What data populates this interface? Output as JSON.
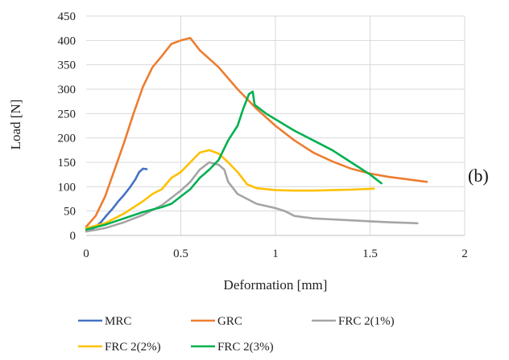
{
  "chart_data": {
    "type": "line",
    "panel_label": "(b)",
    "xlabel": "Deformation [mm]",
    "ylabel": "Load [N]",
    "xlim": [
      0,
      2
    ],
    "ylim": [
      0,
      450
    ],
    "xticks": [
      0,
      0.5,
      1,
      1.5,
      2
    ],
    "xtick_labels": [
      "0",
      "0.5",
      "1",
      "1.5",
      "2"
    ],
    "yticks": [
      0,
      50,
      100,
      150,
      200,
      250,
      300,
      350,
      400,
      450
    ],
    "ytick_labels": [
      "0",
      "50",
      "100",
      "150",
      "200",
      "250",
      "300",
      "350",
      "400",
      "450"
    ],
    "grid": true,
    "legend_position": "bottom",
    "series": [
      {
        "name": "MRC",
        "color": "#4472c4",
        "points": [
          [
            0.02,
            10
          ],
          [
            0.05,
            18
          ],
          [
            0.08,
            28
          ],
          [
            0.11,
            42
          ],
          [
            0.14,
            55
          ],
          [
            0.17,
            70
          ],
          [
            0.2,
            83
          ],
          [
            0.23,
            98
          ],
          [
            0.26,
            115
          ],
          [
            0.28,
            130
          ],
          [
            0.3,
            137
          ],
          [
            0.32,
            136
          ]
        ]
      },
      {
        "name": "GRC",
        "color": "#ed7d31",
        "points": [
          [
            0,
            18
          ],
          [
            0.05,
            40
          ],
          [
            0.1,
            80
          ],
          [
            0.15,
            135
          ],
          [
            0.2,
            190
          ],
          [
            0.25,
            250
          ],
          [
            0.3,
            305
          ],
          [
            0.35,
            345
          ],
          [
            0.4,
            368
          ],
          [
            0.45,
            393
          ],
          [
            0.5,
            400
          ],
          [
            0.55,
            405
          ],
          [
            0.6,
            380
          ],
          [
            0.7,
            345
          ],
          [
            0.8,
            300
          ],
          [
            0.9,
            260
          ],
          [
            1.0,
            225
          ],
          [
            1.1,
            195
          ],
          [
            1.2,
            170
          ],
          [
            1.3,
            152
          ],
          [
            1.4,
            137
          ],
          [
            1.5,
            127
          ],
          [
            1.6,
            120
          ],
          [
            1.7,
            115
          ],
          [
            1.8,
            110
          ]
        ]
      },
      {
        "name": "FRC 2(1%)",
        "color": "#a5a5a5",
        "points": [
          [
            0,
            8
          ],
          [
            0.1,
            15
          ],
          [
            0.2,
            27
          ],
          [
            0.3,
            42
          ],
          [
            0.4,
            62
          ],
          [
            0.5,
            92
          ],
          [
            0.55,
            110
          ],
          [
            0.6,
            135
          ],
          [
            0.65,
            150
          ],
          [
            0.7,
            145
          ],
          [
            0.73,
            135
          ],
          [
            0.75,
            110
          ],
          [
            0.8,
            85
          ],
          [
            0.9,
            65
          ],
          [
            1.0,
            56
          ],
          [
            1.05,
            50
          ],
          [
            1.1,
            40
          ],
          [
            1.2,
            35
          ],
          [
            1.3,
            33
          ],
          [
            1.4,
            31
          ],
          [
            1.5,
            29
          ],
          [
            1.6,
            27
          ],
          [
            1.75,
            25
          ]
        ]
      },
      {
        "name": "FRC 2(2%)",
        "color": "#ffc000",
        "points": [
          [
            0,
            15
          ],
          [
            0.1,
            25
          ],
          [
            0.2,
            45
          ],
          [
            0.3,
            70
          ],
          [
            0.35,
            85
          ],
          [
            0.4,
            95
          ],
          [
            0.45,
            118
          ],
          [
            0.5,
            130
          ],
          [
            0.55,
            150
          ],
          [
            0.6,
            170
          ],
          [
            0.65,
            175
          ],
          [
            0.7,
            168
          ],
          [
            0.75,
            150
          ],
          [
            0.8,
            130
          ],
          [
            0.85,
            105
          ],
          [
            0.9,
            97
          ],
          [
            1.0,
            93
          ],
          [
            1.1,
            92
          ],
          [
            1.2,
            92
          ],
          [
            1.3,
            93
          ],
          [
            1.4,
            94
          ],
          [
            1.52,
            96
          ]
        ]
      },
      {
        "name": "FRC 2(3%)",
        "color": "#00b050",
        "points": [
          [
            0,
            12
          ],
          [
            0.1,
            22
          ],
          [
            0.2,
            35
          ],
          [
            0.3,
            48
          ],
          [
            0.4,
            58
          ],
          [
            0.45,
            65
          ],
          [
            0.5,
            80
          ],
          [
            0.55,
            95
          ],
          [
            0.6,
            118
          ],
          [
            0.65,
            135
          ],
          [
            0.7,
            155
          ],
          [
            0.75,
            195
          ],
          [
            0.8,
            225
          ],
          [
            0.83,
            260
          ],
          [
            0.86,
            290
          ],
          [
            0.88,
            295
          ],
          [
            0.89,
            268
          ],
          [
            0.95,
            250
          ],
          [
            1.1,
            215
          ],
          [
            1.2,
            195
          ],
          [
            1.3,
            175
          ],
          [
            1.4,
            150
          ],
          [
            1.5,
            125
          ],
          [
            1.56,
            107
          ]
        ]
      }
    ]
  }
}
